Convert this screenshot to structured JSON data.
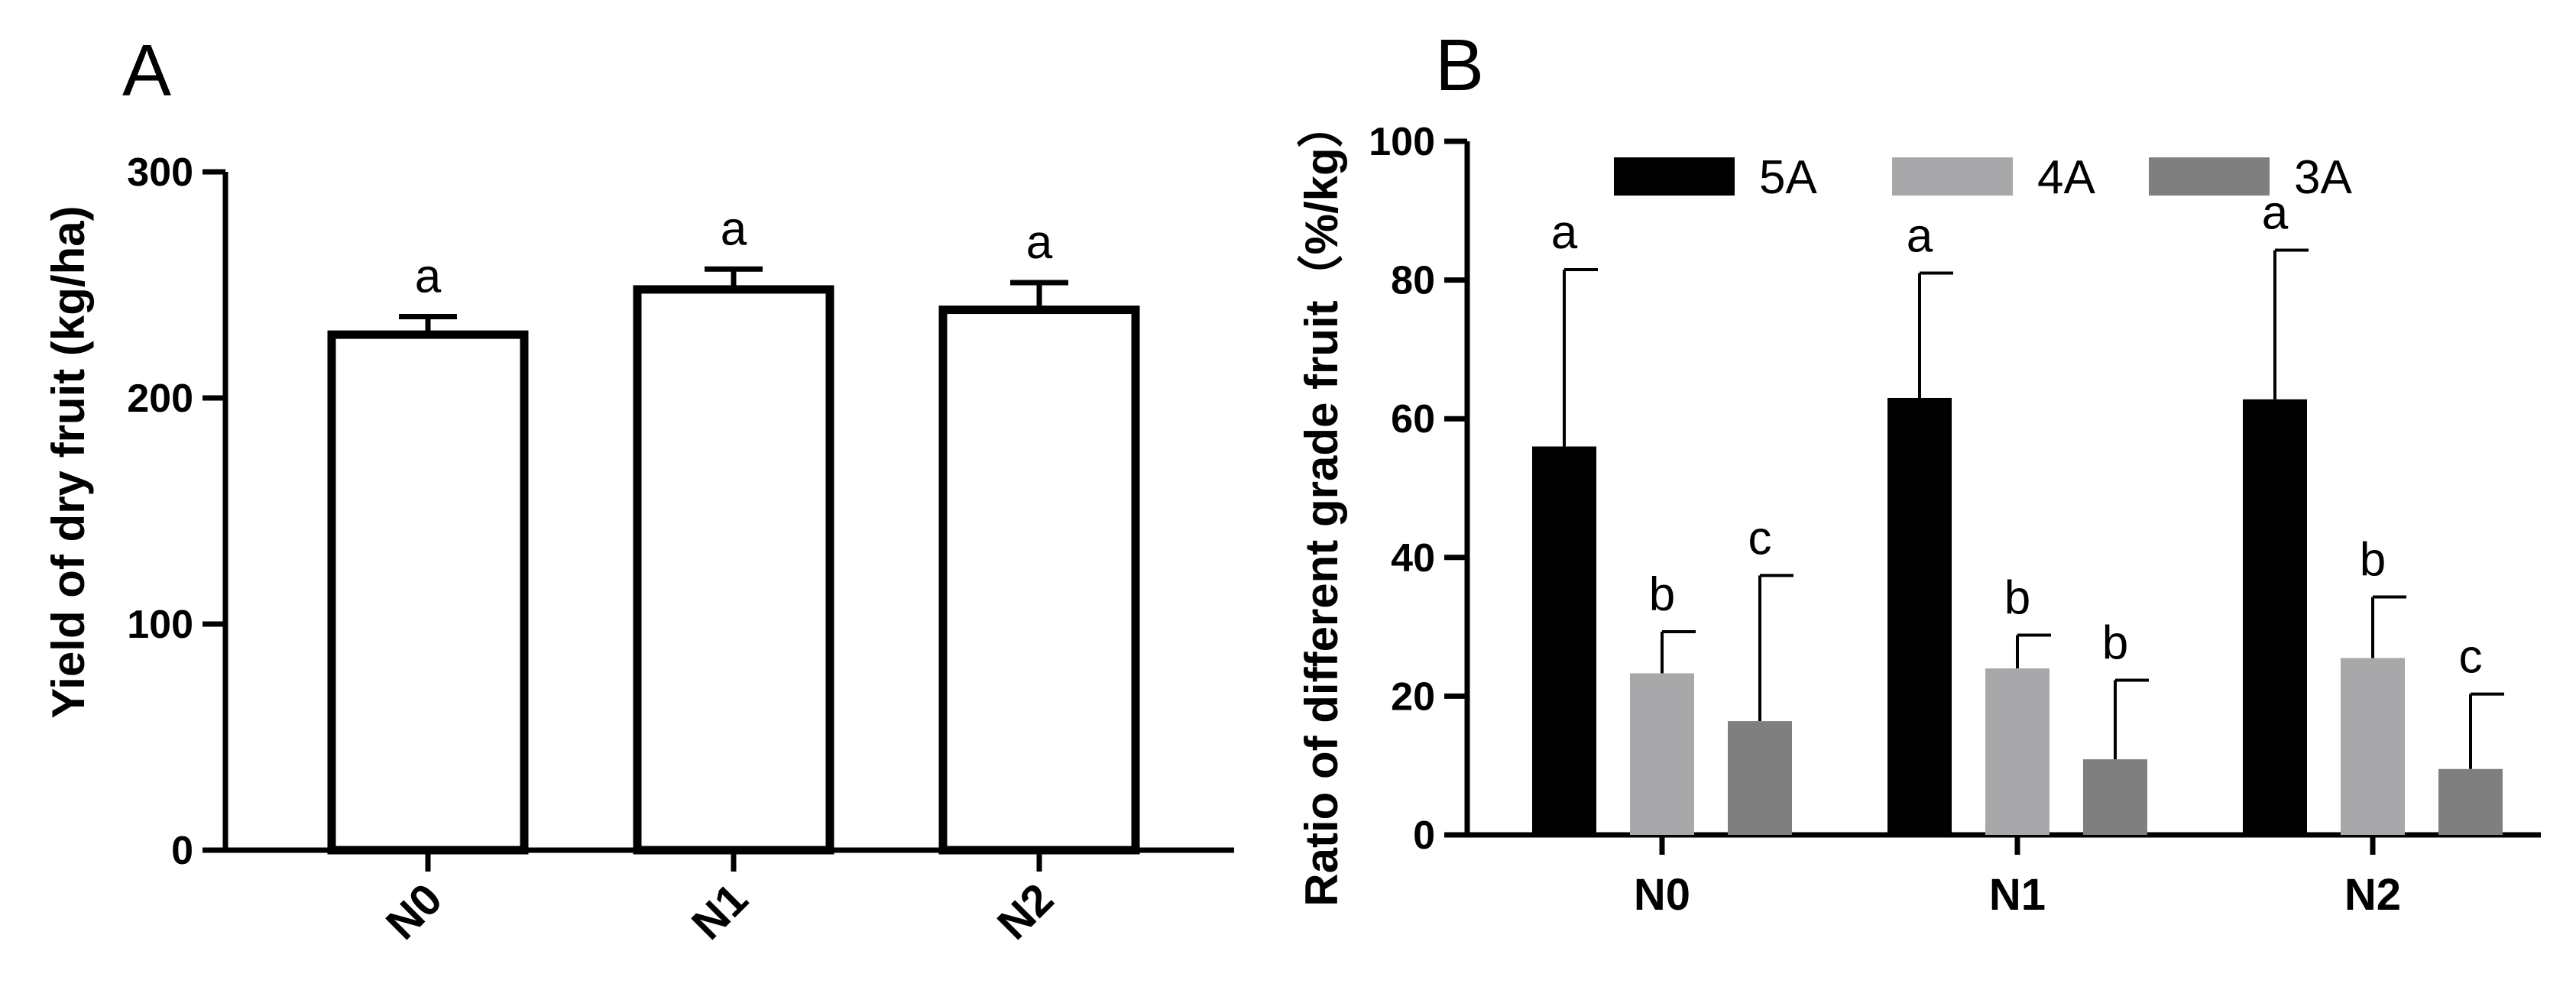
{
  "chart_data": [
    {
      "panel": "A",
      "type": "bar",
      "categories": [
        "N0",
        "N1",
        "N2"
      ],
      "values": [
        228,
        248,
        239
      ],
      "errors": [
        8,
        9,
        12
      ],
      "significance": [
        "a",
        "a",
        "a"
      ],
      "ylabel": "Yield of dry fruit (kg/ha)",
      "xlabel": "",
      "ylim": [
        0,
        300
      ],
      "yticks": [
        0,
        100,
        200,
        300
      ],
      "bar_fill": "#ffffff",
      "bar_stroke": "#000000"
    },
    {
      "panel": "B",
      "type": "bar",
      "categories": [
        "N0",
        "N1",
        "N2"
      ],
      "series": [
        {
          "name": "5A",
          "color": "#000000",
          "values": [
            56,
            63,
            62.8
          ],
          "errors": [
            25.5,
            18,
            21.5
          ],
          "significance": [
            "a",
            "a",
            "a"
          ]
        },
        {
          "name": "4A",
          "color": "#a8a8ab",
          "values": [
            23.3,
            24,
            25.5
          ],
          "errors": [
            6,
            4.8,
            8.8
          ],
          "significance": [
            "b",
            "b",
            "b"
          ]
        },
        {
          "name": "3A",
          "color": "#7f7f7f",
          "values": [
            16.4,
            10.9,
            9.5
          ],
          "errors": [
            21,
            11.4,
            10.8
          ],
          "significance": [
            "c",
            "b",
            "c"
          ]
        }
      ],
      "ylabel": "Ratio of different grade  fruit（%/kg）",
      "xlabel": "",
      "ylim": [
        0,
        100
      ],
      "yticks": [
        0,
        20,
        40,
        60,
        80,
        100
      ],
      "legend_position": "top"
    }
  ]
}
